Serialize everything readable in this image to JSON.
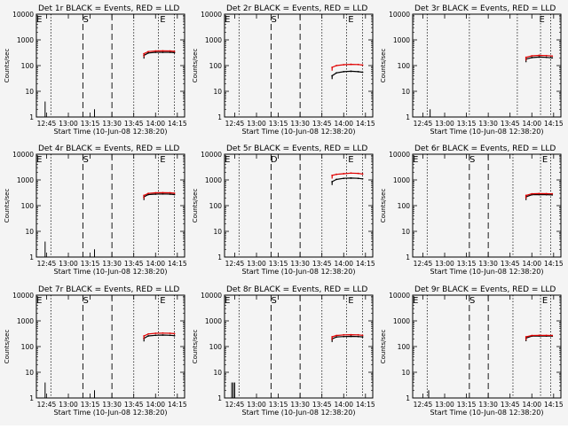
{
  "chart_data": [
    {
      "type": "line",
      "title": "Det 1r BLACK = Events, RED = LLD",
      "xlabel": "Start Time (10-Jun-08 12:38:20)",
      "ylabel": "Counts/sec",
      "yscale": "log",
      "ylim": [
        1,
        10000
      ],
      "xlim": [
        "12:38",
        "14:20"
      ],
      "x_tick_labels": [
        "12:45",
        "13:00",
        "13:15",
        "13:30",
        "13:45",
        "14:00",
        "14:15"
      ],
      "y_tick_labels": [
        "1",
        "10",
        "100",
        "1000",
        "10000"
      ],
      "annotations": [
        "E",
        "S",
        "E"
      ],
      "series": [
        {
          "color": "#000000",
          "x": [
            "13:52",
            "13:55",
            "14:00",
            "14:05",
            "14:10",
            "14:13"
          ],
          "y": [
            250,
            310,
            330,
            330,
            330,
            320
          ]
        },
        {
          "color": "#e00000",
          "x": [
            "13:52",
            "13:55",
            "14:00",
            "14:05",
            "14:10",
            "14:13"
          ],
          "y": [
            290,
            350,
            370,
            375,
            370,
            360
          ]
        }
      ]
    },
    {
      "type": "line",
      "title": "Det 2r BLACK = Events, RED = LLD",
      "xlabel": "Start Time (10-Jun-08 12:38:20)",
      "ylabel": "Counts/sec",
      "yscale": "log",
      "ylim": [
        1,
        10000
      ],
      "xlim": [
        "12:38",
        "14:20"
      ],
      "x_tick_labels": [
        "12:45",
        "13:00",
        "13:15",
        "13:30",
        "13:45",
        "14:00",
        "14:15"
      ],
      "y_tick_labels": [
        "1",
        "10",
        "100",
        "1000",
        "10000"
      ],
      "annotations": [
        "E",
        "S",
        "E"
      ],
      "series": [
        {
          "color": "#000000",
          "x": [
            "13:52",
            "13:55",
            "14:00",
            "14:05",
            "14:10",
            "14:13"
          ],
          "y": [
            40,
            52,
            58,
            60,
            58,
            55
          ]
        },
        {
          "color": "#e00000",
          "x": [
            "13:52",
            "13:55",
            "14:00",
            "14:05",
            "14:10",
            "14:13"
          ],
          "y": [
            85,
            100,
            108,
            112,
            110,
            105
          ]
        }
      ]
    },
    {
      "type": "line",
      "title": "Det 3r BLACK = Events, RED = LLD",
      "xlabel": "Start Time (10-Jun-08 12:38:20)",
      "ylabel": "Counts/sec",
      "yscale": "log",
      "ylim": [
        1,
        10000
      ],
      "xlim": [
        "12:38",
        "14:20"
      ],
      "x_tick_labels": [
        "12:45",
        "13:00",
        "13:15",
        "13:30",
        "13:45",
        "14:00",
        "14:15"
      ],
      "y_tick_labels": [
        "1",
        "10",
        "100",
        "1000",
        "10000"
      ],
      "annotations": [
        "E"
      ],
      "series": [
        {
          "color": "#000000",
          "x": [
            "13:56",
            "14:00",
            "14:05",
            "14:10",
            "14:14"
          ],
          "y": [
            180,
            205,
            215,
            210,
            200
          ]
        },
        {
          "color": "#e00000",
          "x": [
            "13:56",
            "14:00",
            "14:05",
            "14:10",
            "14:14"
          ],
          "y": [
            210,
            240,
            250,
            245,
            235
          ]
        }
      ]
    },
    {
      "type": "line",
      "title": "Det 4r BLACK = Events, RED = LLD",
      "xlabel": "Start Time (10-Jun-08 12:38:20)",
      "ylabel": "Counts/sec",
      "yscale": "log",
      "ylim": [
        1,
        10000
      ],
      "xlim": [
        "12:38",
        "14:20"
      ],
      "x_tick_labels": [
        "12:45",
        "13:00",
        "13:15",
        "13:30",
        "13:45",
        "14:00",
        "14:15"
      ],
      "y_tick_labels": [
        "1",
        "10",
        "100",
        "1000",
        "10000"
      ],
      "annotations": [
        "E",
        "S",
        "E"
      ],
      "series": [
        {
          "color": "#000000",
          "x": [
            "13:52",
            "13:55",
            "14:00",
            "14:05",
            "14:10",
            "14:13"
          ],
          "y": [
            220,
            270,
            280,
            285,
            280,
            270
          ]
        },
        {
          "color": "#e00000",
          "x": [
            "13:52",
            "13:55",
            "14:00",
            "14:05",
            "14:10",
            "14:13"
          ],
          "y": [
            250,
            300,
            315,
            320,
            315,
            305
          ]
        }
      ]
    },
    {
      "type": "line",
      "title": "Det 5r BLACK = Events, RED = LLD",
      "xlabel": "Start Time (10-Jun-08 12:38:20)",
      "ylabel": "Counts/sec",
      "yscale": "log",
      "ylim": [
        1,
        10000
      ],
      "xlim": [
        "12:38",
        "14:20"
      ],
      "x_tick_labels": [
        "12:45",
        "13:00",
        "13:15",
        "13:30",
        "13:45",
        "14:00",
        "14:15"
      ],
      "y_tick_labels": [
        "1",
        "10",
        "100",
        "1000",
        "10000"
      ],
      "annotations": [
        "E",
        "D",
        "E"
      ],
      "series": [
        {
          "color": "#000000",
          "x": [
            "13:52",
            "13:55",
            "14:00",
            "14:05",
            "14:10",
            "14:13"
          ],
          "y": [
            850,
            1050,
            1150,
            1180,
            1150,
            1100
          ]
        },
        {
          "color": "#e00000",
          "x": [
            "13:52",
            "13:55",
            "14:00",
            "14:05",
            "14:10",
            "14:13"
          ],
          "y": [
            1500,
            1650,
            1750,
            1850,
            1800,
            1700
          ]
        }
      ]
    },
    {
      "type": "line",
      "title": "Det 6r BLACK = Events, RED = LLD",
      "xlabel": "Start Time (10-Jun-08 12:38:20)",
      "ylabel": "Counts/sec",
      "yscale": "log",
      "ylim": [
        1,
        10000
      ],
      "xlim": [
        "12:38",
        "14:20"
      ],
      "x_tick_labels": [
        "12:45",
        "13:00",
        "13:15",
        "13:30",
        "13:45",
        "14:00",
        "14:15"
      ],
      "y_tick_labels": [
        "1",
        "10",
        "100",
        "1000",
        "10000"
      ],
      "annotations": [
        "E",
        "S",
        "E"
      ],
      "series": [
        {
          "color": "#000000",
          "x": [
            "13:56",
            "14:00",
            "14:05",
            "14:10",
            "14:14"
          ],
          "y": [
            220,
            265,
            270,
            268,
            262
          ]
        },
        {
          "color": "#e00000",
          "x": [
            "13:56",
            "14:00",
            "14:05",
            "14:10",
            "14:14"
          ],
          "y": [
            250,
            290,
            295,
            292,
            288
          ]
        }
      ]
    },
    {
      "type": "line",
      "title": "Det 7r BLACK = Events, RED = LLD",
      "xlabel": "Start Time (10-Jun-08 12:38:20)",
      "ylabel": "Counts/sec",
      "yscale": "log",
      "ylim": [
        1,
        10000
      ],
      "xlim": [
        "12:38",
        "14:20"
      ],
      "x_tick_labels": [
        "12:45",
        "13:00",
        "13:15",
        "13:30",
        "13:45",
        "14:00",
        "14:15"
      ],
      "y_tick_labels": [
        "1",
        "10",
        "100",
        "1000",
        "10000"
      ],
      "annotations": [
        "E",
        "S",
        "E"
      ],
      "series": [
        {
          "color": "#000000",
          "x": [
            "13:52",
            "13:55",
            "14:00",
            "14:05",
            "14:10",
            "14:13"
          ],
          "y": [
            210,
            260,
            275,
            280,
            275,
            265
          ]
        },
        {
          "color": "#e00000",
          "x": [
            "13:52",
            "13:55",
            "14:00",
            "14:05",
            "14:10",
            "14:13"
          ],
          "y": [
            260,
            310,
            330,
            335,
            330,
            318
          ]
        }
      ]
    },
    {
      "type": "line",
      "title": "Det 8r BLACK = Events, RED = LLD",
      "xlabel": "Start Time (10-Jun-08 12:38:20)",
      "ylabel": "Counts/sec",
      "yscale": "log",
      "ylim": [
        1,
        10000
      ],
      "xlim": [
        "12:38",
        "14:20"
      ],
      "x_tick_labels": [
        "12:45",
        "13:00",
        "13:15",
        "13:30",
        "13:45",
        "14:00",
        "14:15"
      ],
      "y_tick_labels": [
        "1",
        "10",
        "100",
        "1000",
        "10000"
      ],
      "annotations": [
        "E",
        "S",
        "E"
      ],
      "series": [
        {
          "color": "#000000",
          "x": [
            "13:52",
            "13:55",
            "14:00",
            "14:05",
            "14:10",
            "14:13"
          ],
          "y": [
            200,
            235,
            245,
            250,
            245,
            238
          ]
        },
        {
          "color": "#e00000",
          "x": [
            "13:52",
            "13:55",
            "14:00",
            "14:05",
            "14:10",
            "14:13"
          ],
          "y": [
            240,
            270,
            285,
            290,
            285,
            275
          ]
        }
      ]
    },
    {
      "type": "line",
      "title": "Det 9r BLACK = Events, RED = LLD",
      "xlabel": "Start Time (10-Jun-08 12:38:20)",
      "ylabel": "Counts/sec",
      "yscale": "log",
      "ylim": [
        1,
        10000
      ],
      "xlim": [
        "12:38",
        "14:20"
      ],
      "x_tick_labels": [
        "12:45",
        "13:00",
        "13:15",
        "13:30",
        "13:45",
        "14:00",
        "14:15"
      ],
      "y_tick_labels": [
        "1",
        "10",
        "100",
        "1000",
        "10000"
      ],
      "annotations": [
        "E",
        "S",
        "E"
      ],
      "series": [
        {
          "color": "#000000",
          "x": [
            "13:56",
            "14:00",
            "14:05",
            "14:10",
            "14:14"
          ],
          "y": [
            215,
            255,
            260,
            258,
            255
          ]
        },
        {
          "color": "#e00000",
          "x": [
            "13:56",
            "14:00",
            "14:05",
            "14:10",
            "14:14"
          ],
          "y": [
            240,
            270,
            275,
            273,
            270
          ]
        }
      ]
    }
  ]
}
